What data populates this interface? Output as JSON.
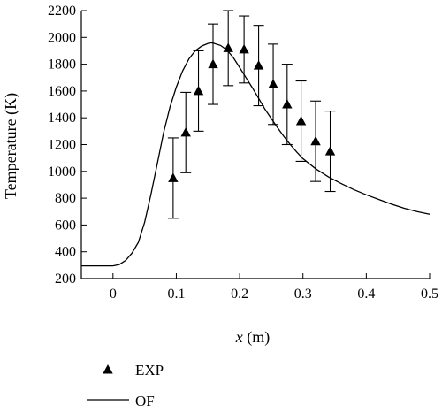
{
  "chart_data": {
    "type": "scatter",
    "title": "",
    "xlabel_var": "x",
    "xlabel_unit": " (m)",
    "ylabel": "Temperature (K)",
    "xlim": [
      -0.05,
      0.5
    ],
    "ylim": [
      200,
      2200
    ],
    "xticks": [
      0,
      0.1,
      0.2,
      0.3,
      0.4,
      0.5
    ],
    "xtick_labels": [
      "0",
      "0.1",
      "0.2",
      "0.3",
      "0.4",
      "0.5"
    ],
    "yticks": [
      200,
      400,
      600,
      800,
      1000,
      1200,
      1400,
      1600,
      1800,
      2000,
      2200
    ],
    "ytick_labels": [
      "200",
      "400",
      "600",
      "800",
      "1000",
      "1200",
      "1400",
      "1600",
      "1800",
      "2000",
      "2200"
    ],
    "grid": false,
    "legend_position": "bottom-left",
    "series": [
      {
        "name": "EXP",
        "kind": "marker-errorbar",
        "marker": "triangle",
        "x": [
          0.095,
          0.115,
          0.135,
          0.158,
          0.182,
          0.207,
          0.23,
          0.253,
          0.275,
          0.297,
          0.32,
          0.343
        ],
        "y": [
          950,
          1290,
          1600,
          1800,
          1920,
          1910,
          1790,
          1650,
          1500,
          1375,
          1225,
          1150
        ],
        "err": [
          300,
          300,
          300,
          300,
          280,
          250,
          300,
          300,
          300,
          300,
          300,
          300
        ]
      },
      {
        "name": "OF",
        "kind": "line",
        "x": [
          -0.05,
          0.0,
          0.01,
          0.02,
          0.03,
          0.04,
          0.05,
          0.06,
          0.07,
          0.08,
          0.09,
          0.1,
          0.11,
          0.12,
          0.13,
          0.14,
          0.15,
          0.155,
          0.16,
          0.17,
          0.18,
          0.19,
          0.2,
          0.21,
          0.22,
          0.23,
          0.24,
          0.25,
          0.26,
          0.27,
          0.28,
          0.29,
          0.3,
          0.32,
          0.34,
          0.36,
          0.38,
          0.4,
          0.42,
          0.44,
          0.46,
          0.48,
          0.5
        ],
        "y": [
          295,
          295,
          305,
          335,
          390,
          470,
          620,
          830,
          1060,
          1290,
          1480,
          1630,
          1750,
          1840,
          1900,
          1935,
          1955,
          1960,
          1955,
          1940,
          1905,
          1850,
          1775,
          1700,
          1625,
          1545,
          1465,
          1395,
          1325,
          1260,
          1200,
          1145,
          1095,
          1020,
          960,
          910,
          865,
          825,
          790,
          755,
          725,
          700,
          680
        ]
      }
    ]
  }
}
